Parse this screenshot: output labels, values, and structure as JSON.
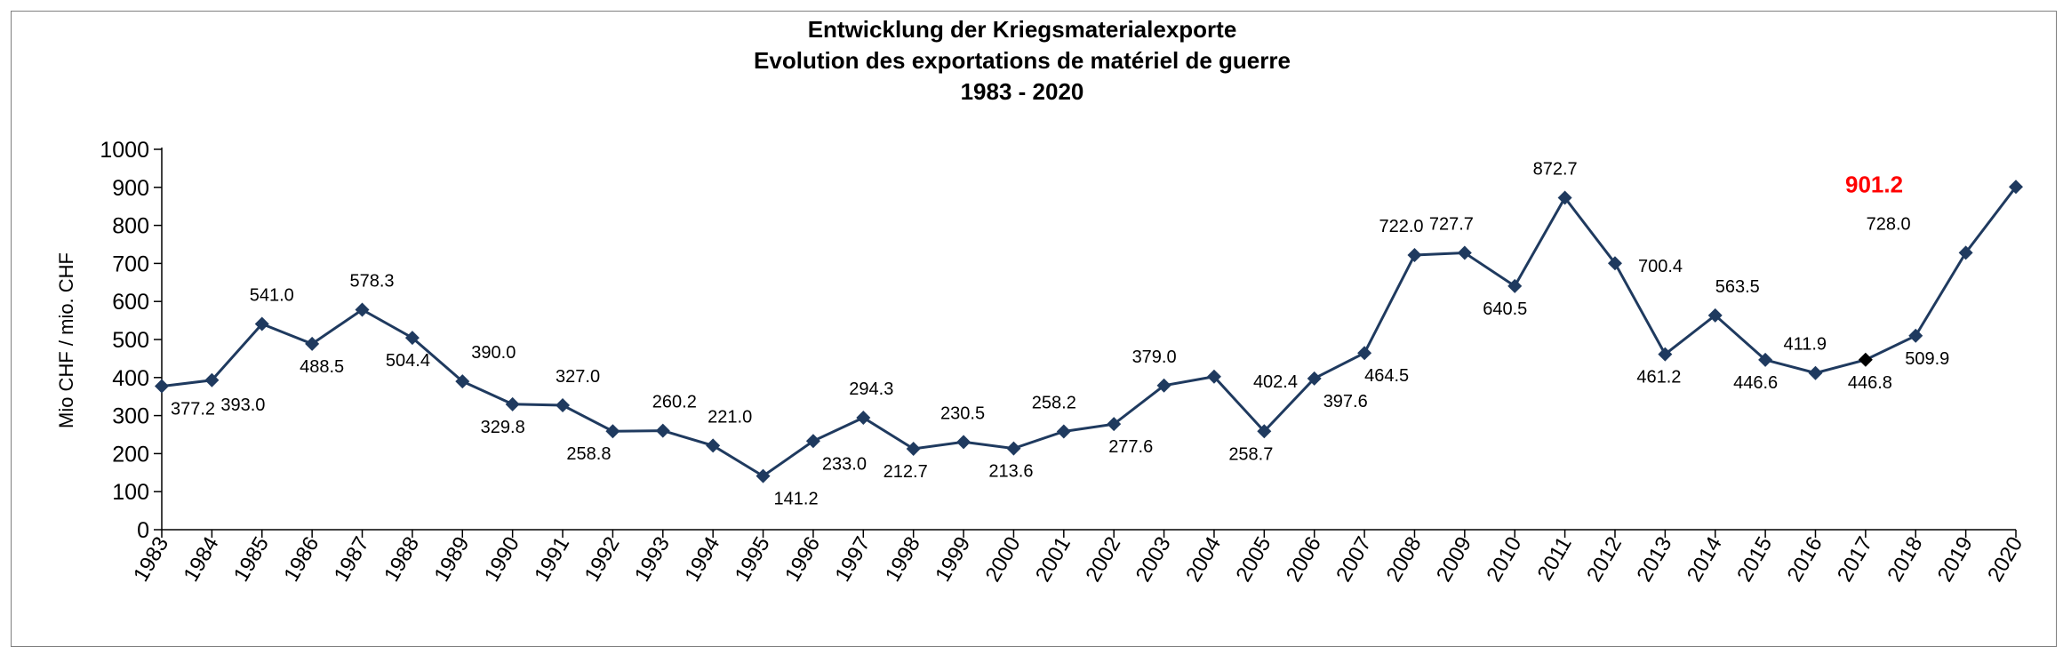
{
  "chart_data": {
    "type": "line",
    "title": [
      "Entwicklung der Kriegsmaterialexporte",
      "Evolution des exportations de matériel de guerre",
      "1983 - 2020"
    ],
    "xlabel": "",
    "ylabel": "Mio CHF / mio. CHF",
    "ylim": [
      0,
      1000
    ],
    "yticks": [
      0,
      100,
      200,
      300,
      400,
      500,
      600,
      700,
      800,
      900,
      1000
    ],
    "grid": false,
    "categories": [
      "1983",
      "1984",
      "1985",
      "1986",
      "1987",
      "1988",
      "1989",
      "1990",
      "1991",
      "1992",
      "1993",
      "1994",
      "1995",
      "1996",
      "1997",
      "1998",
      "1999",
      "2000",
      "2001",
      "2002",
      "2003",
      "2004",
      "2005",
      "2006",
      "2007",
      "2008",
      "2009",
      "2010",
      "2011",
      "2012",
      "2013",
      "2014",
      "2015",
      "2016",
      "2017",
      "2018",
      "2019",
      "2020"
    ],
    "series": [
      {
        "values": [
          377.2,
          393.0,
          541.0,
          488.5,
          578.3,
          504.4,
          390.0,
          329.8,
          327.0,
          258.8,
          260.2,
          221.0,
          141.2,
          233.0,
          294.3,
          212.7,
          230.5,
          213.6,
          258.2,
          277.6,
          379.0,
          402.4,
          258.7,
          397.6,
          464.5,
          722.0,
          727.7,
          640.5,
          872.7,
          700.4,
          461.2,
          563.5,
          446.6,
          411.9,
          446.8,
          509.9,
          728.0,
          901.2
        ],
        "color": "#1f3a5f"
      }
    ],
    "data_labels": [
      "377.2",
      "393.0",
      "541.0",
      "488.5",
      "578.3",
      "504.4",
      "390.0",
      "329.8",
      "327.0",
      "258.8",
      "260.2",
      "221.0",
      "141.2",
      "233.0",
      "294.3",
      "212.7",
      "230.5",
      "213.6",
      "258.2",
      "277.6",
      "379.0",
      "402.4",
      "258.7",
      "397.6",
      "464.5",
      "722.0",
      "727.7",
      "640.5",
      "872.7",
      "700.4",
      "461.2",
      "563.5",
      "446.6",
      "411.9",
      "446.8",
      "509.9",
      "728.0",
      "901.2"
    ],
    "highlight_index": 37,
    "highlight_color": "#ff0000",
    "special_marker_index": 34,
    "special_marker_color": "#000000"
  }
}
